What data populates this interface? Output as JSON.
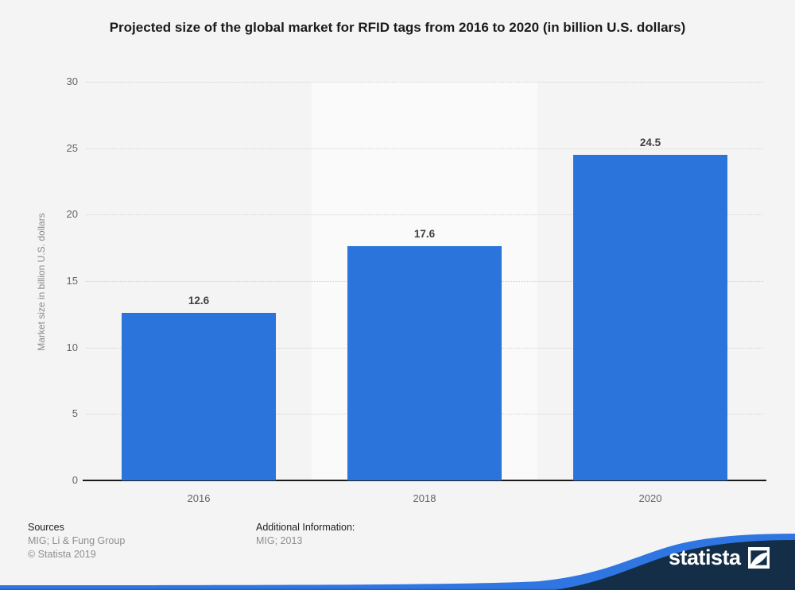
{
  "title": "Projected size of the global market for RFID tags from 2016 to 2020 (in billion U.S. dollars)",
  "chart_data": {
    "type": "bar",
    "categories": [
      "2016",
      "2018",
      "2020"
    ],
    "values": [
      12.6,
      17.6,
      24.5
    ],
    "value_labels": [
      "12.6",
      "17.6",
      "24.5"
    ],
    "title": "Projected size of the global market for RFID tags from 2016 to 2020 (in billion U.S. dollars)",
    "xlabel": "",
    "ylabel": "Market size in billion U.S. dollars",
    "ylim": [
      0,
      30
    ],
    "yticks": [
      0,
      5,
      10,
      15,
      20,
      25,
      30
    ],
    "grid": "horizontal-dotted",
    "legend": "none",
    "bar_color": "#2b74db",
    "alternating_band_color": "#fafafa"
  },
  "colors": {
    "background": "#f4f4f4",
    "bar": "#2b74db",
    "band": "#fafafa",
    "grid": "#d2d2d2",
    "axis_line": "#1a1a1a",
    "navy": "#132e46",
    "wave_blue": "#2f76e2",
    "wave_blue_dark": "#2361c4"
  },
  "footer": {
    "sources_label": "Sources",
    "sources_value": "MIG; Li & Fung Group",
    "copyright": "© Statista 2019",
    "additional_label": "Additional Information:",
    "additional_value": "MIG; 2013"
  },
  "branding": {
    "logo_text": "statista"
  }
}
